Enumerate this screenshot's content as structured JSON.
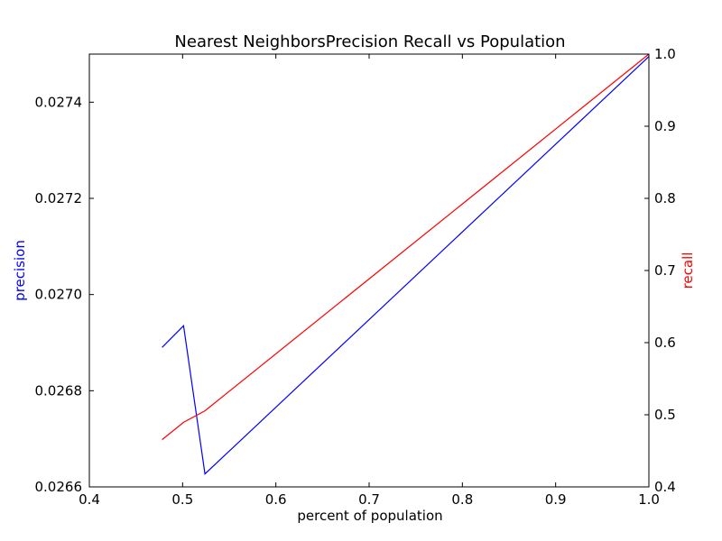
{
  "chart_data": {
    "type": "line",
    "title": "Nearest NeighborsPrecision Recall vs Population",
    "xlabel": "percent of population",
    "ylabel_left": "precision",
    "ylabel_right": "recall",
    "xlim": [
      0.4,
      1.0
    ],
    "ylim_left": [
      0.0266,
      0.0275
    ],
    "ylim_right": [
      0.4,
      1.0
    ],
    "x_ticks": [
      "0.4",
      "0.5",
      "0.6",
      "0.7",
      "0.8",
      "0.9",
      "1.0"
    ],
    "left_ticks": [
      "0.0266",
      "0.0268",
      "0.0270",
      "0.0272",
      "0.0274"
    ],
    "right_ticks": [
      "0.4",
      "0.5",
      "0.6",
      "0.7",
      "0.8",
      "0.9",
      "1.0"
    ],
    "grid": false,
    "series": [
      {
        "axis": "left",
        "color": "#0000ff",
        "x": [
          0.478,
          0.501,
          0.524,
          1.0
        ],
        "y": [
          0.02689,
          0.026935,
          0.026627,
          0.027495
        ]
      },
      {
        "axis": "right",
        "color": "#ff0000",
        "x": [
          0.478,
          0.501,
          0.524,
          1.0
        ],
        "y": [
          0.4655,
          0.4895,
          0.5055,
          1.0
        ]
      }
    ]
  }
}
